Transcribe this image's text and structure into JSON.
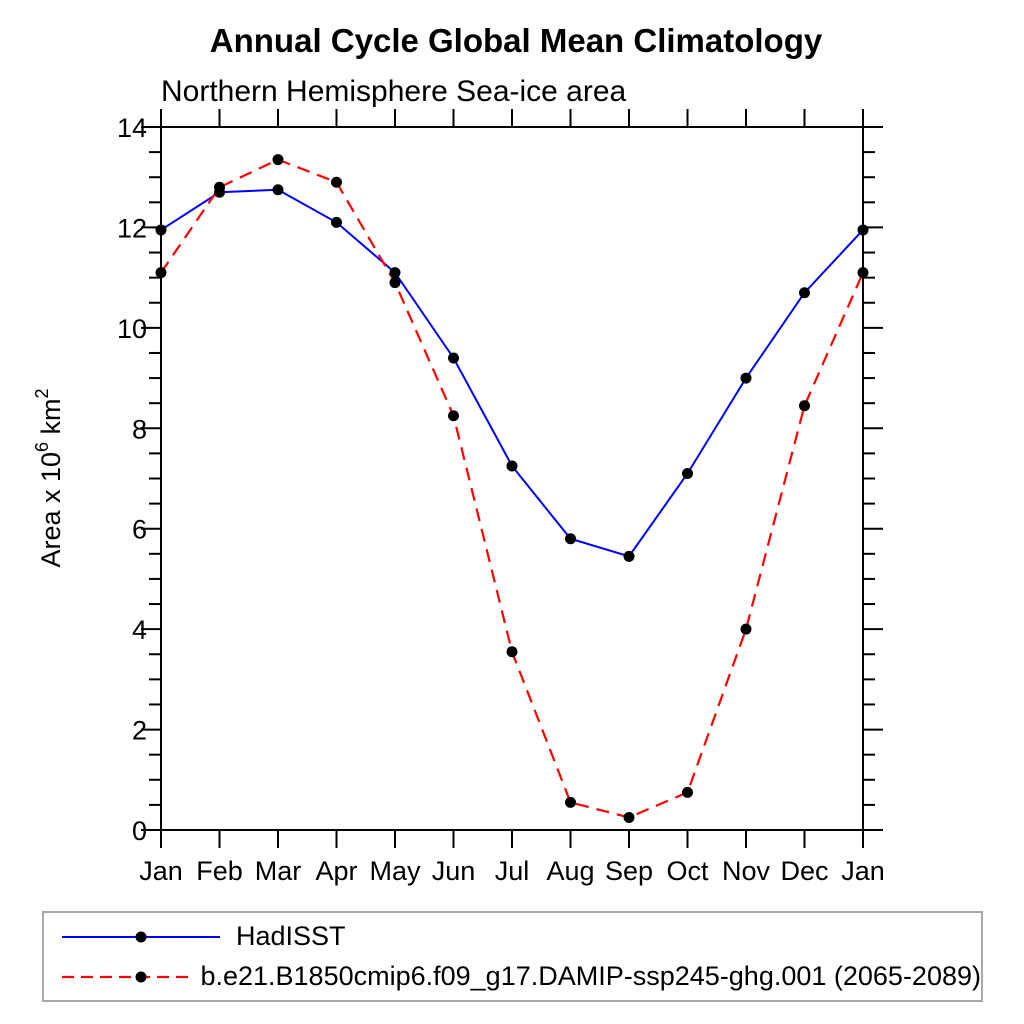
{
  "chart_data": {
    "type": "line",
    "title": "Annual Cycle Global Mean Climatology",
    "subtitle": "Northern Hemisphere Sea-ice area",
    "ylabel_parts": [
      {
        "t": "Area x 10"
      },
      {
        "t": "6",
        "sup": true
      },
      {
        "t": " km"
      },
      {
        "t": "2",
        "sup": true
      }
    ],
    "categories": [
      "Jan",
      "Feb",
      "Mar",
      "Apr",
      "May",
      "Jun",
      "Jul",
      "Aug",
      "Sep",
      "Oct",
      "Nov",
      "Dec",
      "Jan"
    ],
    "yticklabels": [
      "0",
      "2",
      "4",
      "6",
      "8",
      "10",
      "12",
      "14"
    ],
    "ylim": [
      0,
      14
    ],
    "ytick_major_interval": 2,
    "ytick_minor_interval": 0.5,
    "grid": false,
    "legend_position": "bottom-left-box",
    "colors": {
      "hadisst_line": "#0000ff",
      "model_line": "#ff0000",
      "marker": "#000000",
      "frame": "#000000",
      "legend_border": "#a9a9a9"
    },
    "series": [
      {
        "name": "HadISST",
        "color": "#0000ff",
        "line_style": "solid",
        "marker": "filled-circle",
        "marker_color": "#000000",
        "values": [
          11.95,
          12.7,
          12.75,
          12.1,
          11.1,
          9.4,
          7.25,
          5.8,
          5.45,
          7.1,
          9.0,
          10.7,
          11.95
        ]
      },
      {
        "name": "b.e21.B1850cmip6.f09_g17.DAMIP-ssp245-ghg.001 (2065-2089)",
        "color": "#ff0000",
        "line_style": "dashed",
        "marker": "filled-circle",
        "marker_color": "#000000",
        "values": [
          11.1,
          12.8,
          13.35,
          12.9,
          10.9,
          8.25,
          3.55,
          0.55,
          0.25,
          0.75,
          4.0,
          8.45,
          11.1
        ]
      }
    ]
  }
}
